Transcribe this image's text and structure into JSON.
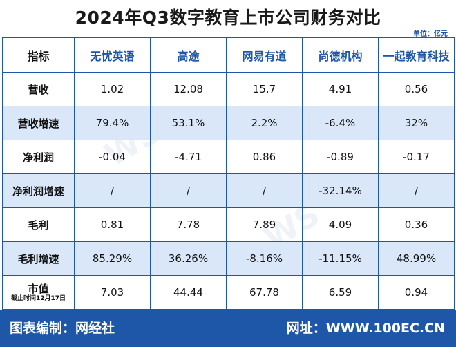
{
  "title": "2024年Q3数字教育上市公司财务对比",
  "unit": "单位：亿元",
  "table": {
    "headers": [
      "指标",
      "无忧英语",
      "高途",
      "网易有道",
      "尚德机构",
      "一起教育科技"
    ],
    "rows": [
      {
        "label": "营收",
        "values": [
          "1.02",
          "12.08",
          "15.7",
          "4.91",
          "0.56"
        ]
      },
      {
        "label": "营收增速",
        "values": [
          "79.4%",
          "53.1%",
          "2.2%",
          "-6.4%",
          "32%"
        ]
      },
      {
        "label": "净利润",
        "values": [
          "-0.04",
          "-4.71",
          "0.86",
          "-0.89",
          "-0.17"
        ]
      },
      {
        "label": "净利润增速",
        "values": [
          "/",
          "/",
          "/",
          "-32.14%",
          "/"
        ]
      },
      {
        "label": "毛利",
        "values": [
          "0.81",
          "7.78",
          "7.89",
          "4.09",
          "0.36"
        ]
      },
      {
        "label": "毛利增速",
        "values": [
          "85.29%",
          "36.26%",
          "-8.16%",
          "-11.15%",
          "48.99%"
        ]
      },
      {
        "label": "市值",
        "note": "截止时间12月17日",
        "values": [
          "7.03",
          "44.44",
          "67.78",
          "6.59",
          "0.94"
        ]
      }
    ]
  },
  "footer": {
    "left": "图表编制：网经社",
    "right": "网址：WWW.100EC.CN"
  },
  "colors": {
    "accent": "#1e56a8",
    "row_alt": "#d9e7f8"
  }
}
